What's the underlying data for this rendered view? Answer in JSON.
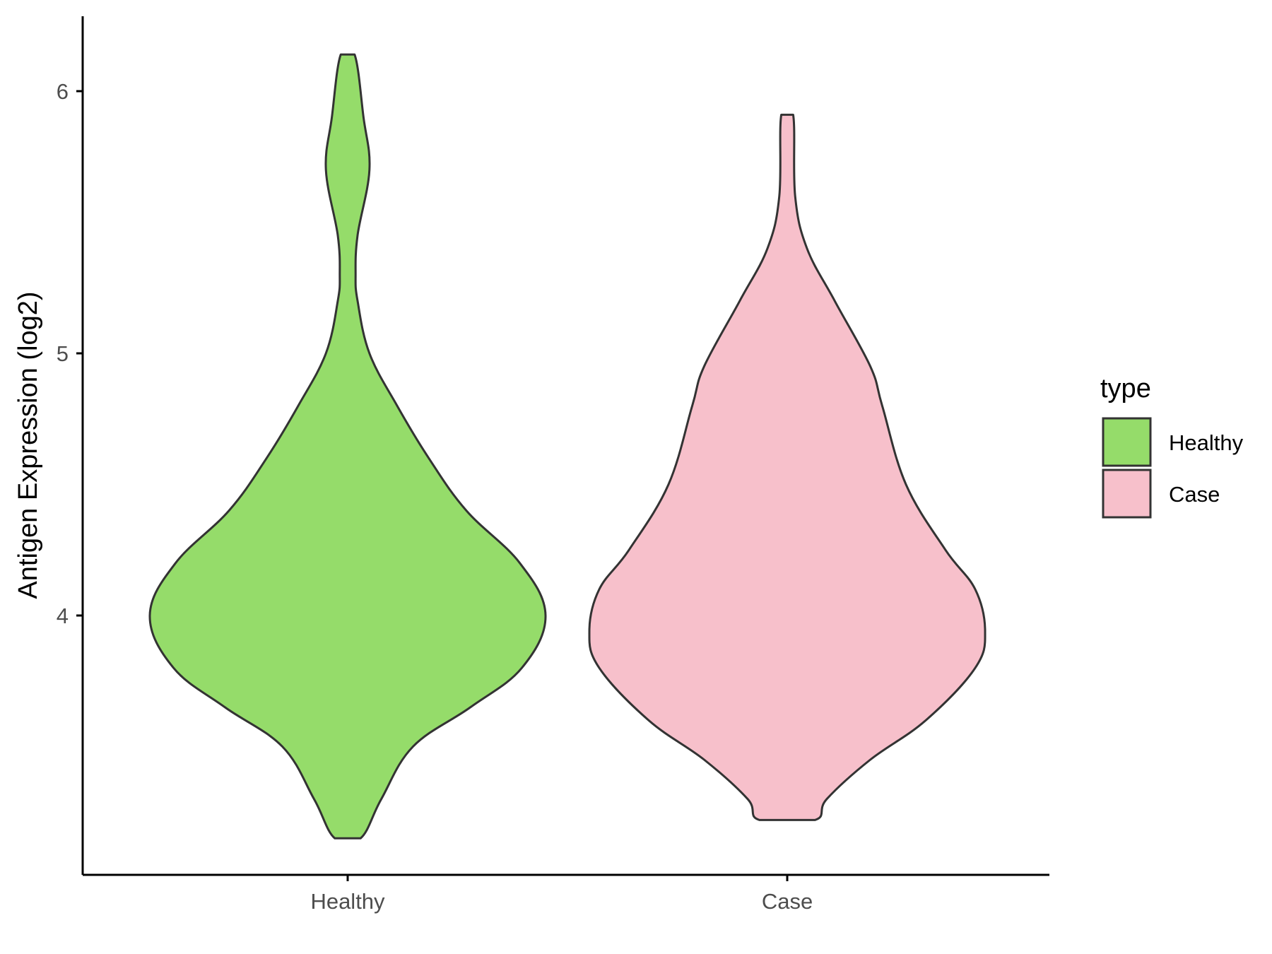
{
  "chart_data": {
    "type": "violin",
    "ylabel": "Antigen Expression (log2)",
    "xlabel": "",
    "ylim": [
      3.05,
      6.3
    ],
    "yticks": [
      4,
      5,
      6
    ],
    "grid": false,
    "legend": {
      "title": "type",
      "position": "right",
      "entries": [
        "Healthy",
        "Case"
      ]
    },
    "series": [
      {
        "name": "Healthy",
        "color": "#95DC6A",
        "min": 3.15,
        "max": 6.14,
        "density": [
          [
            3.15,
            0.065
          ],
          [
            3.3,
            0.17
          ],
          [
            3.5,
            0.33
          ],
          [
            3.65,
            0.62
          ],
          [
            3.8,
            0.88
          ],
          [
            4.0,
            1.0
          ],
          [
            4.2,
            0.87
          ],
          [
            4.4,
            0.6
          ],
          [
            4.6,
            0.41
          ],
          [
            4.8,
            0.25
          ],
          [
            5.0,
            0.11
          ],
          [
            5.2,
            0.05
          ],
          [
            5.3,
            0.04
          ],
          [
            5.45,
            0.05
          ],
          [
            5.7,
            0.11
          ],
          [
            5.9,
            0.08
          ],
          [
            6.14,
            0.035
          ]
        ]
      },
      {
        "name": "Case",
        "color": "#F7C0CB",
        "min": 3.22,
        "max": 5.91,
        "density": [
          [
            3.22,
            0.14
          ],
          [
            3.3,
            0.2
          ],
          [
            3.45,
            0.42
          ],
          [
            3.6,
            0.7
          ],
          [
            3.8,
            0.95
          ],
          [
            3.94,
            1.0
          ],
          [
            4.1,
            0.95
          ],
          [
            4.25,
            0.8
          ],
          [
            4.5,
            0.6
          ],
          [
            4.8,
            0.48
          ],
          [
            4.95,
            0.42
          ],
          [
            5.2,
            0.24
          ],
          [
            5.4,
            0.1
          ],
          [
            5.6,
            0.04
          ],
          [
            5.91,
            0.03
          ]
        ]
      }
    ]
  }
}
